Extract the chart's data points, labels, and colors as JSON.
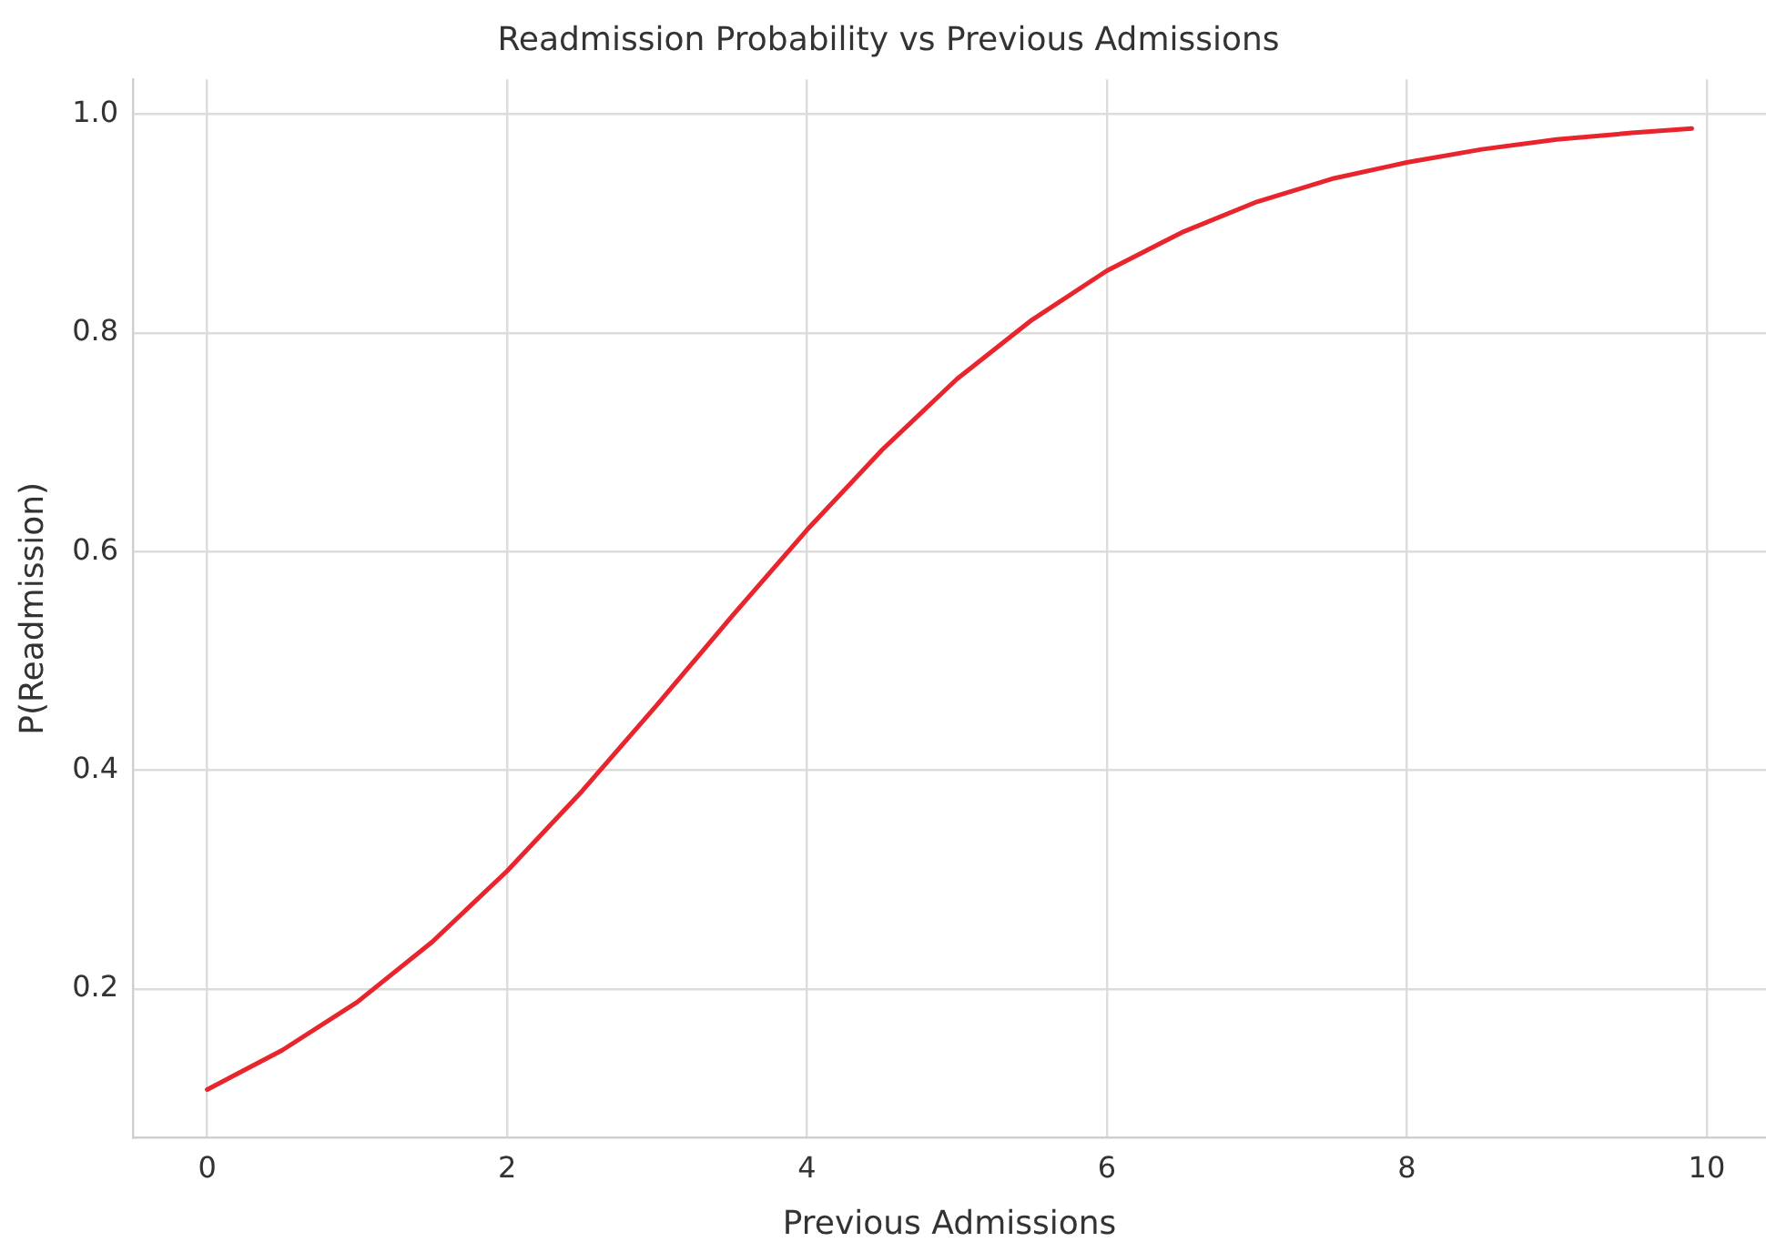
{
  "chart_data": {
    "type": "line",
    "title": "Readmission Probability vs Previous Admissions",
    "xlabel": "Previous Admissions",
    "ylabel": "P(Readmission)",
    "x": [
      0,
      0.5,
      1,
      1.5,
      2,
      2.5,
      3,
      3.5,
      4,
      4.5,
      5,
      5.5,
      6,
      6.5,
      7,
      7.5,
      8,
      8.5,
      9,
      9.5,
      9.9
    ],
    "series": [
      {
        "color": "#e8242c",
        "values": [
          0.108,
          0.144,
          0.188,
          0.243,
          0.308,
          0.381,
          0.46,
          0.541,
          0.62,
          0.693,
          0.758,
          0.812,
          0.857,
          0.892,
          0.92,
          0.941,
          0.956,
          0.968,
          0.977,
          0.983,
          0.987
        ]
      }
    ],
    "xlim": [
      -0.495,
      10.395
    ],
    "ylim": [
      0.064,
      1.032
    ],
    "xticks": [
      0,
      2,
      4,
      6,
      8,
      10
    ],
    "yticks": [
      0.2,
      0.4,
      0.6,
      0.8,
      {
        "value": 1,
        "label": "1.0"
      }
    ],
    "grid": true,
    "legend": false,
    "marker": "none",
    "line_style": "solid"
  }
}
